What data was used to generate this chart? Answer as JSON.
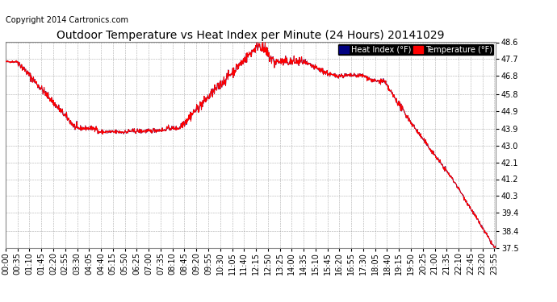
{
  "title": "Outdoor Temperature vs Heat Index per Minute (24 Hours) 20141029",
  "copyright": "Copyright 2014 Cartronics.com",
  "legend_heat_index": "Heat Index (°F)",
  "legend_temperature": "Temperature (°F)",
  "heat_index_color": "#000080",
  "temperature_color": "#ff0000",
  "background_color": "#ffffff",
  "plot_bg_color": "#ffffff",
  "grid_color": "#999999",
  "ylim": [
    37.5,
    48.6
  ],
  "yticks": [
    37.5,
    38.4,
    39.4,
    40.3,
    41.2,
    42.1,
    43.0,
    43.9,
    44.9,
    45.8,
    46.8,
    47.7,
    48.6
  ],
  "title_fontsize": 10,
  "copyright_fontsize": 7,
  "tick_fontsize": 7,
  "legend_fontsize": 7,
  "num_minutes": 1440
}
